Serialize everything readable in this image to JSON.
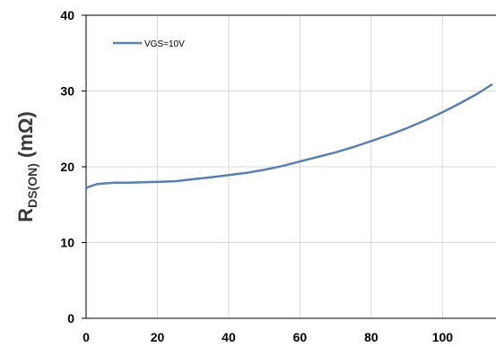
{
  "chart_data": {
    "type": "line",
    "title": "",
    "xlabel": "",
    "ylabel_main": "R",
    "ylabel_sub": "DS(ON)",
    "ylabel_unit": " (mΩ)",
    "xlim": [
      0,
      115
    ],
    "ylim": [
      0,
      40
    ],
    "x_ticks": [
      "0",
      "20",
      "40",
      "60",
      "80",
      "100"
    ],
    "y_ticks": [
      "0",
      "10",
      "20",
      "30",
      "40"
    ],
    "grid": true,
    "legend_position": "top-left",
    "series": [
      {
        "name": "VGS=10V",
        "color": "#5b7fb0",
        "x": [
          0,
          1,
          3,
          5,
          8,
          12,
          16,
          20,
          25,
          30,
          35,
          40,
          45,
          50,
          55,
          60,
          65,
          70,
          75,
          80,
          85,
          90,
          95,
          100,
          105,
          110,
          114
        ],
        "y": [
          17.2,
          17.4,
          17.7,
          17.8,
          17.9,
          17.9,
          17.95,
          18.0,
          18.1,
          18.35,
          18.6,
          18.9,
          19.2,
          19.6,
          20.1,
          20.7,
          21.3,
          21.9,
          22.6,
          23.4,
          24.2,
          25.1,
          26.1,
          27.2,
          28.4,
          29.7,
          30.9
        ]
      }
    ]
  }
}
